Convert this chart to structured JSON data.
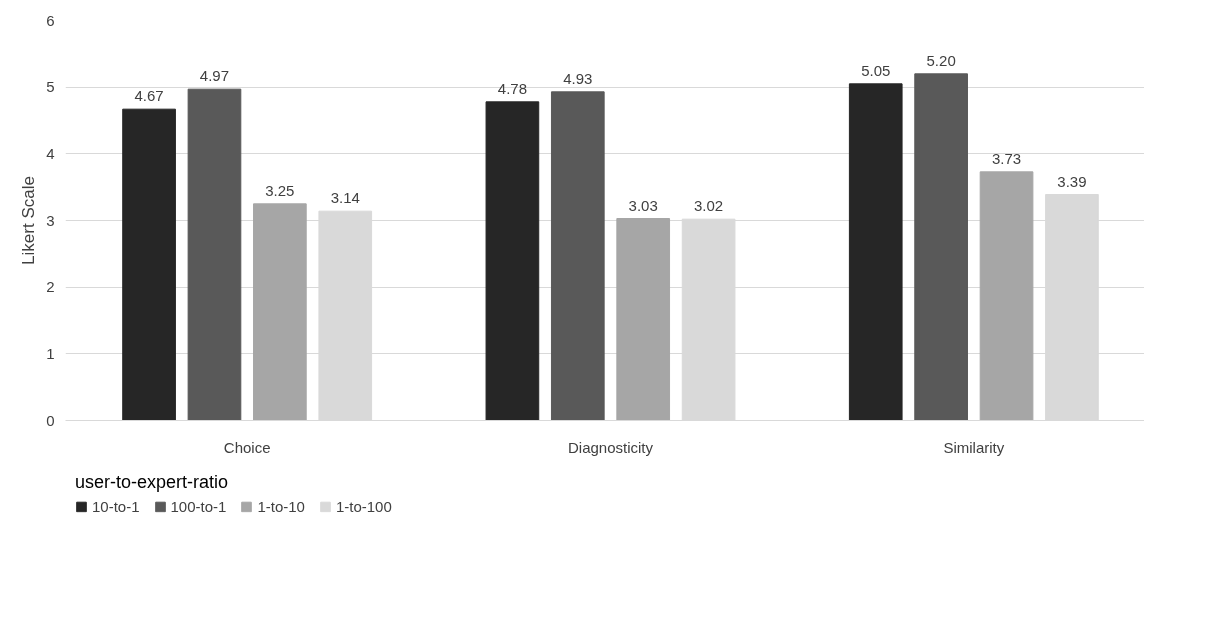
{
  "chart_data": {
    "type": "bar",
    "ylabel": "Likert Scale",
    "legend_title": "user-to-expert-ratio",
    "categories": [
      "Choice",
      "Diagnosticity",
      "Similarity"
    ],
    "series": [
      {
        "name": "10-to-1",
        "color": "#262626",
        "values": [
          4.67,
          4.78,
          5.05
        ],
        "value_labels": [
          "4.67",
          "4.78",
          "5.05"
        ]
      },
      {
        "name": "100-to-1",
        "color": "#595959",
        "values": [
          4.97,
          4.93,
          5.2
        ],
        "value_labels": [
          "4.97",
          "4.93",
          "5.20"
        ]
      },
      {
        "name": "1-to-10",
        "color": "#a6a6a6",
        "values": [
          3.25,
          3.03,
          3.73
        ],
        "value_labels": [
          "3.25",
          "3.03",
          "3.73"
        ]
      },
      {
        "name": "1-to-100",
        "color": "#d9d9d9",
        "values": [
          3.14,
          3.02,
          3.39
        ],
        "value_labels": [
          "3.14",
          "3.02",
          "3.39"
        ]
      }
    ],
    "ylim": [
      0,
      6
    ],
    "yticks": [
      0,
      1,
      2,
      3,
      4,
      5,
      6
    ],
    "grid": "y",
    "legend": "bottom"
  }
}
